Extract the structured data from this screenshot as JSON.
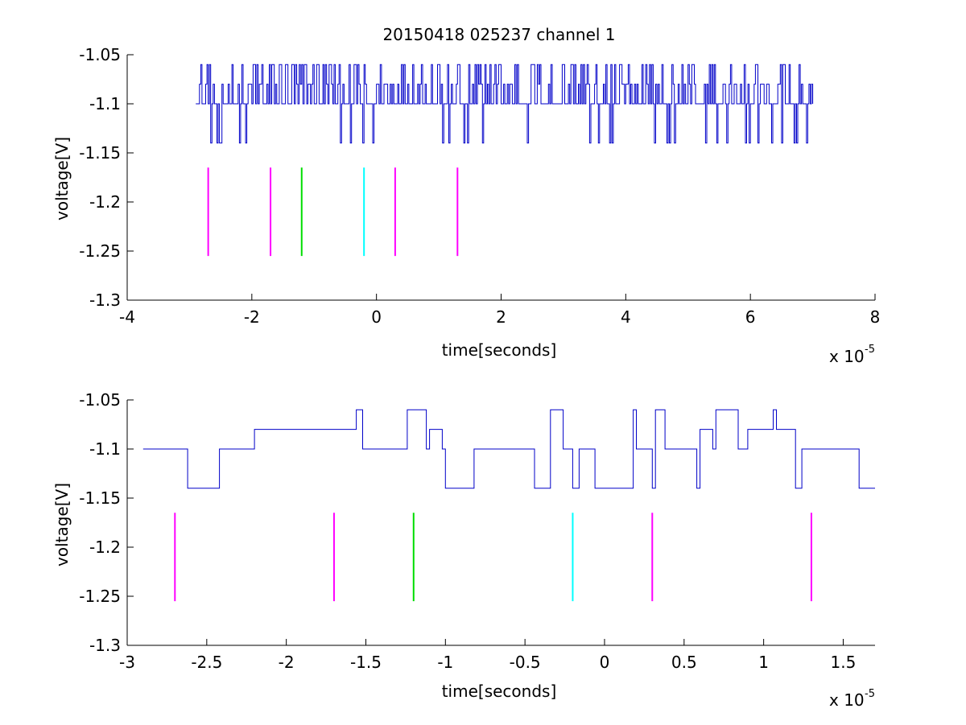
{
  "figure": {
    "title": "20150418 025237 channel 1",
    "background": "#ffffff"
  },
  "chart_data": [
    {
      "type": "line",
      "title": "20150418 025237 channel 1",
      "xlabel": "time[seconds]",
      "ylabel": "voltage[V]",
      "x_exponent_label": "x 10",
      "x_exponent": "-5",
      "xlim": [
        -4,
        8
      ],
      "ylim": [
        -1.3,
        -1.05
      ],
      "xticks": [
        "-4",
        "-2",
        "0",
        "2",
        "4",
        "6",
        "8"
      ],
      "yticks": [
        "-1.05",
        "-1.1",
        "-1.15",
        "-1.2",
        "-1.25",
        "-1.3"
      ],
      "grid": false,
      "signal": {
        "color": "#0000c8",
        "x_range": [
          -2.9,
          7.0
        ],
        "baseline": -1.1,
        "high_level": -1.06,
        "low_level": -1.14,
        "sample_step": 0.02,
        "levels": "dense random-telegraph noise between -1.14, -1.1, -1.08 and -1.06"
      },
      "markers": {
        "y_range": [
          -1.255,
          -1.165
        ],
        "lines": [
          {
            "x": -2.7,
            "color": "#ff00ff"
          },
          {
            "x": -1.7,
            "color": "#ff00ff"
          },
          {
            "x": -1.2,
            "color": "#00dd00"
          },
          {
            "x": -0.2,
            "color": "#00ffff"
          },
          {
            "x": 0.3,
            "color": "#ff00ff"
          },
          {
            "x": 1.3,
            "color": "#ff00ff"
          }
        ]
      }
    },
    {
      "type": "line",
      "xlabel": "time[seconds]",
      "ylabel": "voltage[V]",
      "x_exponent_label": "x 10",
      "x_exponent": "-5",
      "xlim": [
        -3,
        1.7
      ],
      "ylim": [
        -1.3,
        -1.05
      ],
      "xticks": [
        "-3",
        "-2.5",
        "-2",
        "-1.5",
        "-1",
        "-0.5",
        "0",
        "0.5",
        "1",
        "1.5"
      ],
      "yticks": [
        "-1.05",
        "-1.1",
        "-1.15",
        "-1.2",
        "-1.25",
        "-1.3"
      ],
      "grid": false,
      "signal": {
        "color": "#0000c8",
        "x_range": [
          -2.9,
          1.7
        ],
        "baseline": -1.1,
        "high_level": -1.06,
        "low_level": -1.14,
        "sample_step": 0.02,
        "levels": "zoomed random-telegraph noise between -1.14, -1.1, -1.08 and -1.06"
      },
      "markers": {
        "y_range": [
          -1.255,
          -1.165
        ],
        "lines": [
          {
            "x": -2.7,
            "color": "#ff00ff"
          },
          {
            "x": -1.7,
            "color": "#ff00ff"
          },
          {
            "x": -1.2,
            "color": "#00dd00"
          },
          {
            "x": -0.2,
            "color": "#00ffff"
          },
          {
            "x": 0.3,
            "color": "#ff00ff"
          },
          {
            "x": 1.3,
            "color": "#ff00ff"
          }
        ]
      }
    }
  ]
}
